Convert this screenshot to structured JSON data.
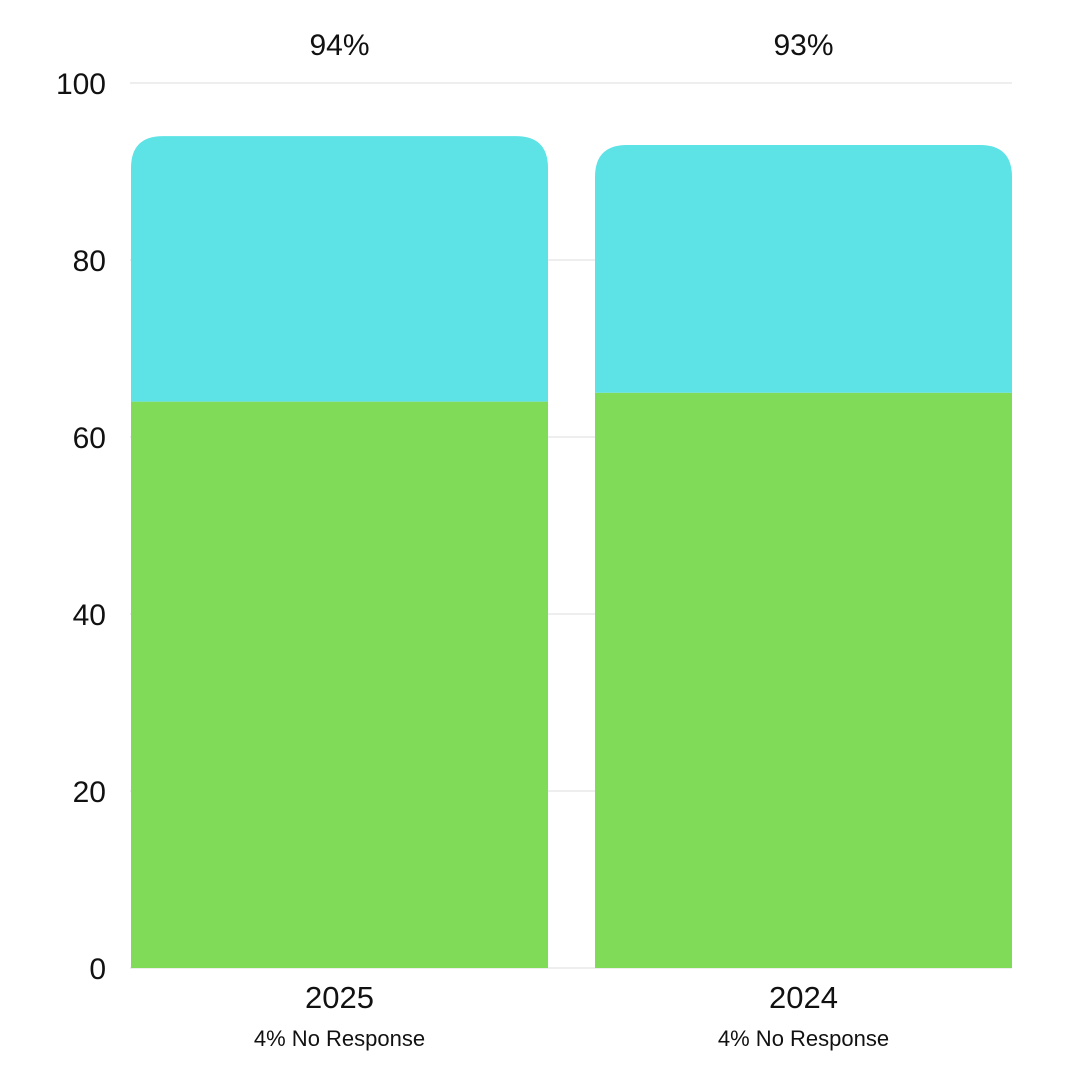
{
  "chart_data": {
    "type": "bar",
    "stacked": true,
    "categories": [
      "2025",
      "2024"
    ],
    "category_notes": [
      "4% No Response",
      "4% No Response"
    ],
    "totals": [
      "94%",
      "93%"
    ],
    "series": [
      {
        "values": [
          64,
          65
        ],
        "color": "#80DB59"
      },
      {
        "values": [
          30,
          28
        ],
        "color": "#5DE2E6"
      }
    ],
    "y_ticks": [
      "0",
      "20",
      "40",
      "60",
      "80",
      "100"
    ],
    "ylim": [
      0,
      100
    ],
    "grid": true
  }
}
